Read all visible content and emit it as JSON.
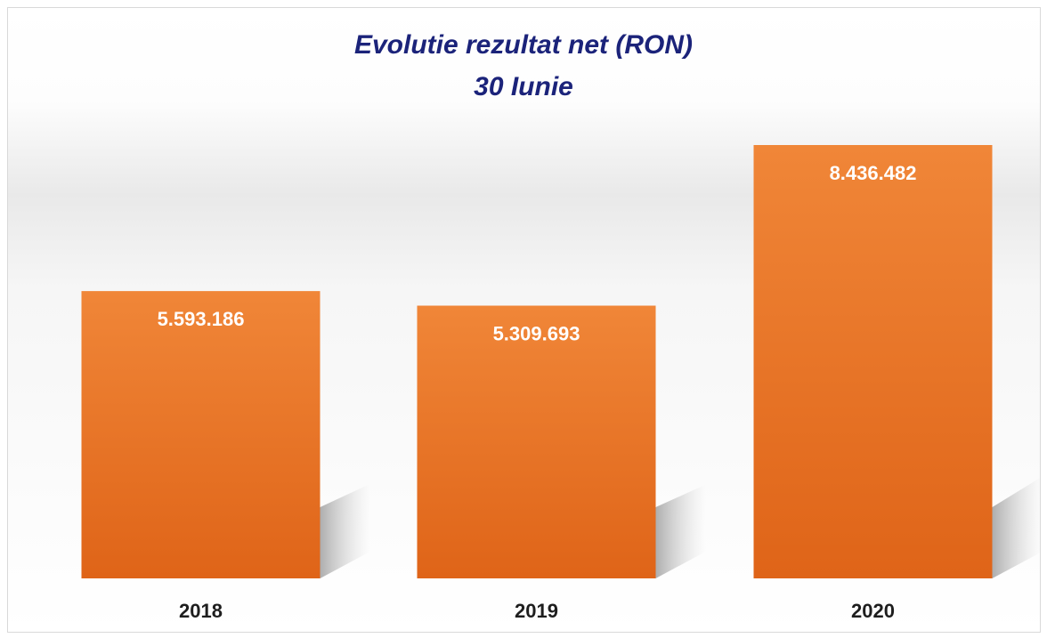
{
  "chart_data": {
    "type": "bar",
    "title": "Evolutie rezultat net (RON)",
    "subtitle": "30 Iunie",
    "categories": [
      "2018",
      "2019",
      "2020"
    ],
    "values": [
      5593186,
      5309693,
      8436482
    ],
    "value_labels": [
      "5.593.186",
      "5.309.693",
      "8.436.482"
    ],
    "color": "#ea7628"
  }
}
